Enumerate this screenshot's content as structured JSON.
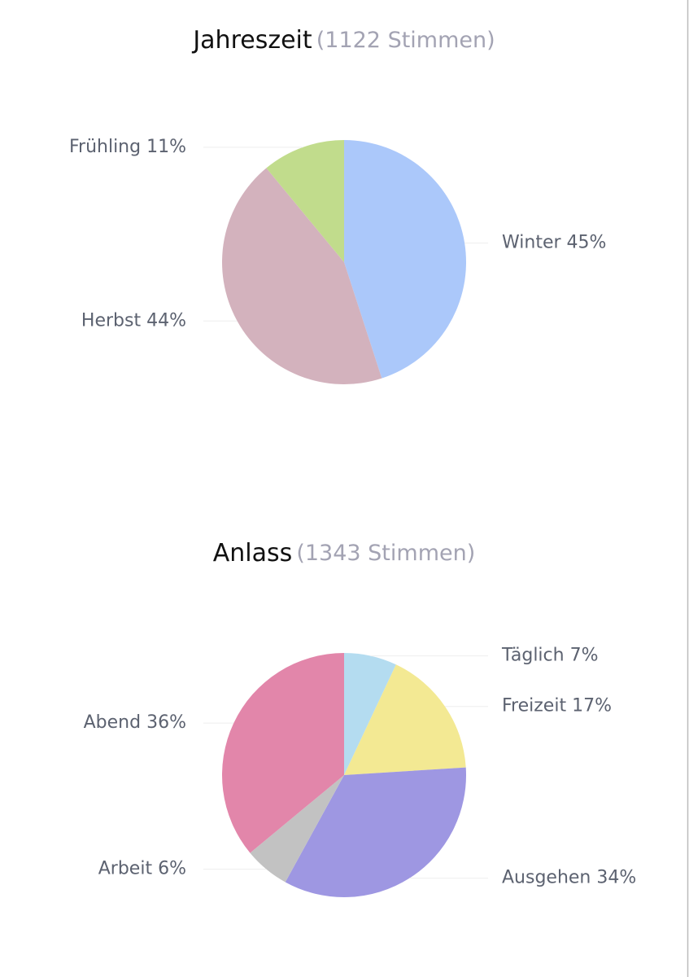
{
  "chart_data": [
    {
      "type": "pie",
      "title": "Jahreszeit",
      "subtitle": "(1122 Stimmen)",
      "categories": [
        "Winter",
        "Herbst",
        "Frühling"
      ],
      "values": [
        45,
        44,
        11
      ],
      "value_labels": [
        "45%",
        "44%",
        "11%"
      ],
      "colors": [
        "#abc8fa",
        "#d3b2bd",
        "#c1dc8c"
      ]
    },
    {
      "type": "pie",
      "title": "Anlass",
      "subtitle": "(1343 Stimmen)",
      "categories": [
        "Täglich",
        "Freizeit",
        "Ausgehen",
        "Arbeit",
        "Abend"
      ],
      "values": [
        7,
        17,
        34,
        6,
        36
      ],
      "value_labels": [
        "7%",
        "17%",
        "34%",
        "6%",
        "36%"
      ],
      "colors": [
        "#b4dcf0",
        "#f3e993",
        "#9e97e2",
        "#c2c2c2",
        "#e286aa"
      ]
    }
  ]
}
